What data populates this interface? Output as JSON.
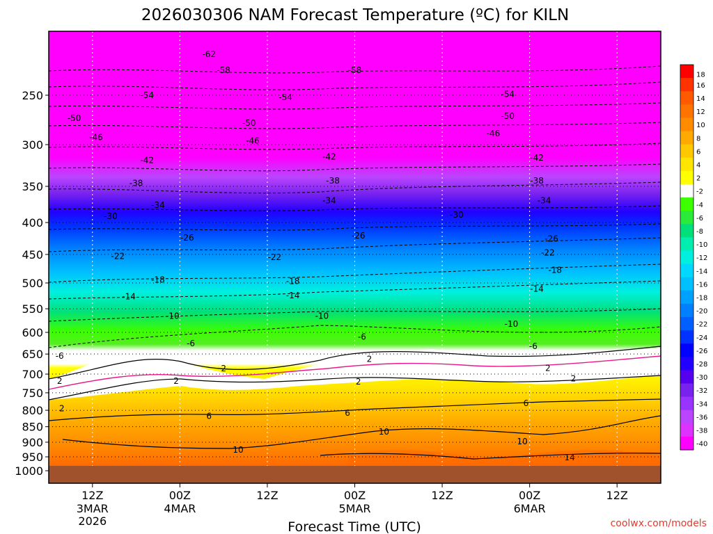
{
  "title": "2026030306 NAM Forecast Temperature (ºC) for KILN",
  "credit": "coolwx.com/models",
  "chart_data": {
    "type": "heatmap",
    "title": "2026030306 NAM Forecast Temperature (ºC) for KILN",
    "xlabel": "Forecast Time (UTC)",
    "ylabel": "",
    "y_axis": {
      "variable": "pressure (hPa)",
      "scale": "log-pressure, inverted",
      "range": [
        1000,
        200
      ]
    },
    "x_ticks": [
      {
        "label": "12Z",
        "sub": "3MAR",
        "sub2": "2026",
        "hour": 6
      },
      {
        "label": "00Z",
        "sub": "4MAR",
        "sub2": "",
        "hour": 18
      },
      {
        "label": "12Z",
        "sub": "",
        "sub2": "",
        "hour": 30
      },
      {
        "label": "00Z",
        "sub": "5MAR",
        "sub2": "",
        "hour": 42
      },
      {
        "label": "12Z",
        "sub": "",
        "sub2": "",
        "hour": 54
      },
      {
        "label": "00Z",
        "sub": "6MAR",
        "sub2": "",
        "hour": 66
      },
      {
        "label": "12Z",
        "sub": "",
        "sub2": "",
        "hour": 78
      }
    ],
    "x_range_hours": [
      0,
      84
    ],
    "pressure_ticks": [
      250,
      300,
      350,
      400,
      450,
      500,
      550,
      600,
      650,
      700,
      750,
      800,
      850,
      900,
      950,
      1000
    ],
    "colorbar": {
      "labels": [
        "18",
        "16",
        "14",
        "12",
        "10",
        "8",
        "6",
        "4",
        "2",
        "-2",
        "-4",
        "-6",
        "-8",
        "-10",
        "-12",
        "-14",
        "-16",
        "-18",
        "-20",
        "-22",
        "-24",
        "-26",
        "-28",
        "-30",
        "-32",
        "-34",
        "-36",
        "-38",
        "-40"
      ],
      "colors": [
        "#ff0000",
        "#ff3300",
        "#ff5a00",
        "#ff7300",
        "#ff8c00",
        "#ffaa00",
        "#ffc800",
        "#ffe600",
        "#ffff00",
        "#ffffff",
        "#3cff00",
        "#2aea3a",
        "#00e07a",
        "#00eeb0",
        "#00f0e0",
        "#00d8ff",
        "#00c0ff",
        "#00a0ff",
        "#0080ff",
        "#0060ff",
        "#0033ff",
        "#0000ff",
        "#2200ff",
        "#5500ee",
        "#7722ee",
        "#9933ff",
        "#bb44ff",
        "#dd33ff",
        "#ff00ff"
      ]
    },
    "isotherm_labels": [
      {
        "text": "-62",
        "hour": 22,
        "p": 215
      },
      {
        "text": "-58",
        "hour": 24,
        "p": 228
      },
      {
        "text": "-58",
        "hour": 42,
        "p": 228
      },
      {
        "text": "-54",
        "hour": 13.5,
        "p": 250
      },
      {
        "text": "-54",
        "hour": 32.5,
        "p": 252
      },
      {
        "text": "-54",
        "hour": 63,
        "p": 249
      },
      {
        "text": "-50",
        "hour": 3.5,
        "p": 272
      },
      {
        "text": "-50",
        "hour": 27.5,
        "p": 277
      },
      {
        "text": "-50",
        "hour": 63,
        "p": 270
      },
      {
        "text": "-46",
        "hour": 6.5,
        "p": 292
      },
      {
        "text": "-46",
        "hour": 28,
        "p": 296
      },
      {
        "text": "-46",
        "hour": 61,
        "p": 288
      },
      {
        "text": "-42",
        "hour": 13.5,
        "p": 318
      },
      {
        "text": "-42",
        "hour": 38.5,
        "p": 314
      },
      {
        "text": "-42",
        "hour": 67,
        "p": 315
      },
      {
        "text": "-38",
        "hour": 12,
        "p": 346
      },
      {
        "text": "-38",
        "hour": 39,
        "p": 343
      },
      {
        "text": "-38",
        "hour": 67,
        "p": 343
      },
      {
        "text": "-34",
        "hour": 15,
        "p": 375
      },
      {
        "text": "-34",
        "hour": 38.5,
        "p": 369
      },
      {
        "text": "-34",
        "hour": 68,
        "p": 369
      },
      {
        "text": "-30",
        "hour": 8.5,
        "p": 391
      },
      {
        "text": "-30",
        "hour": 56,
        "p": 389
      },
      {
        "text": "-26",
        "hour": 19,
        "p": 423
      },
      {
        "text": "-26",
        "hour": 42.5,
        "p": 420
      },
      {
        "text": "-26",
        "hour": 69,
        "p": 425
      },
      {
        "text": "-22",
        "hour": 9.5,
        "p": 453
      },
      {
        "text": "-22",
        "hour": 31,
        "p": 455
      },
      {
        "text": "-22",
        "hour": 68.5,
        "p": 447
      },
      {
        "text": "-18",
        "hour": 15,
        "p": 494
      },
      {
        "text": "-18",
        "hour": 33.5,
        "p": 497
      },
      {
        "text": "-18",
        "hour": 69.5,
        "p": 477
      },
      {
        "text": "-14",
        "hour": 11,
        "p": 526
      },
      {
        "text": "-14",
        "hour": 33.5,
        "p": 524
      },
      {
        "text": "-14",
        "hour": 67,
        "p": 511
      },
      {
        "text": "-10",
        "hour": 17,
        "p": 565
      },
      {
        "text": "-10",
        "hour": 37.5,
        "p": 565
      },
      {
        "text": "-10",
        "hour": 63.5,
        "p": 582
      },
      {
        "text": "-6",
        "hour": 1.5,
        "p": 655
      },
      {
        "text": "-6",
        "hour": 19.5,
        "p": 625
      },
      {
        "text": "-6",
        "hour": 43,
        "p": 610
      },
      {
        "text": "-6",
        "hour": 66.5,
        "p": 632
      },
      {
        "text": "2",
        "hour": 24,
        "p": 686
      },
      {
        "text": "2",
        "hour": 44,
        "p": 662
      },
      {
        "text": "2",
        "hour": 68.5,
        "p": 685
      },
      {
        "text": "2",
        "hour": 1.5,
        "p": 718
      },
      {
        "text": "2",
        "hour": 17.5,
        "p": 718
      },
      {
        "text": "2",
        "hour": 42.5,
        "p": 720
      },
      {
        "text": "2",
        "hour": 72,
        "p": 712
      },
      {
        "text": "2",
        "hour": 1.8,
        "p": 795
      },
      {
        "text": "6",
        "hour": 22,
        "p": 818
      },
      {
        "text": "6",
        "hour": 41,
        "p": 808
      },
      {
        "text": "6",
        "hour": 65.5,
        "p": 780
      },
      {
        "text": "10",
        "hour": 46,
        "p": 866
      },
      {
        "text": "10",
        "hour": 26,
        "p": 926
      },
      {
        "text": "10",
        "hour": 65,
        "p": 898
      },
      {
        "text": "14",
        "hour": 71.5,
        "p": 953
      }
    ]
  }
}
